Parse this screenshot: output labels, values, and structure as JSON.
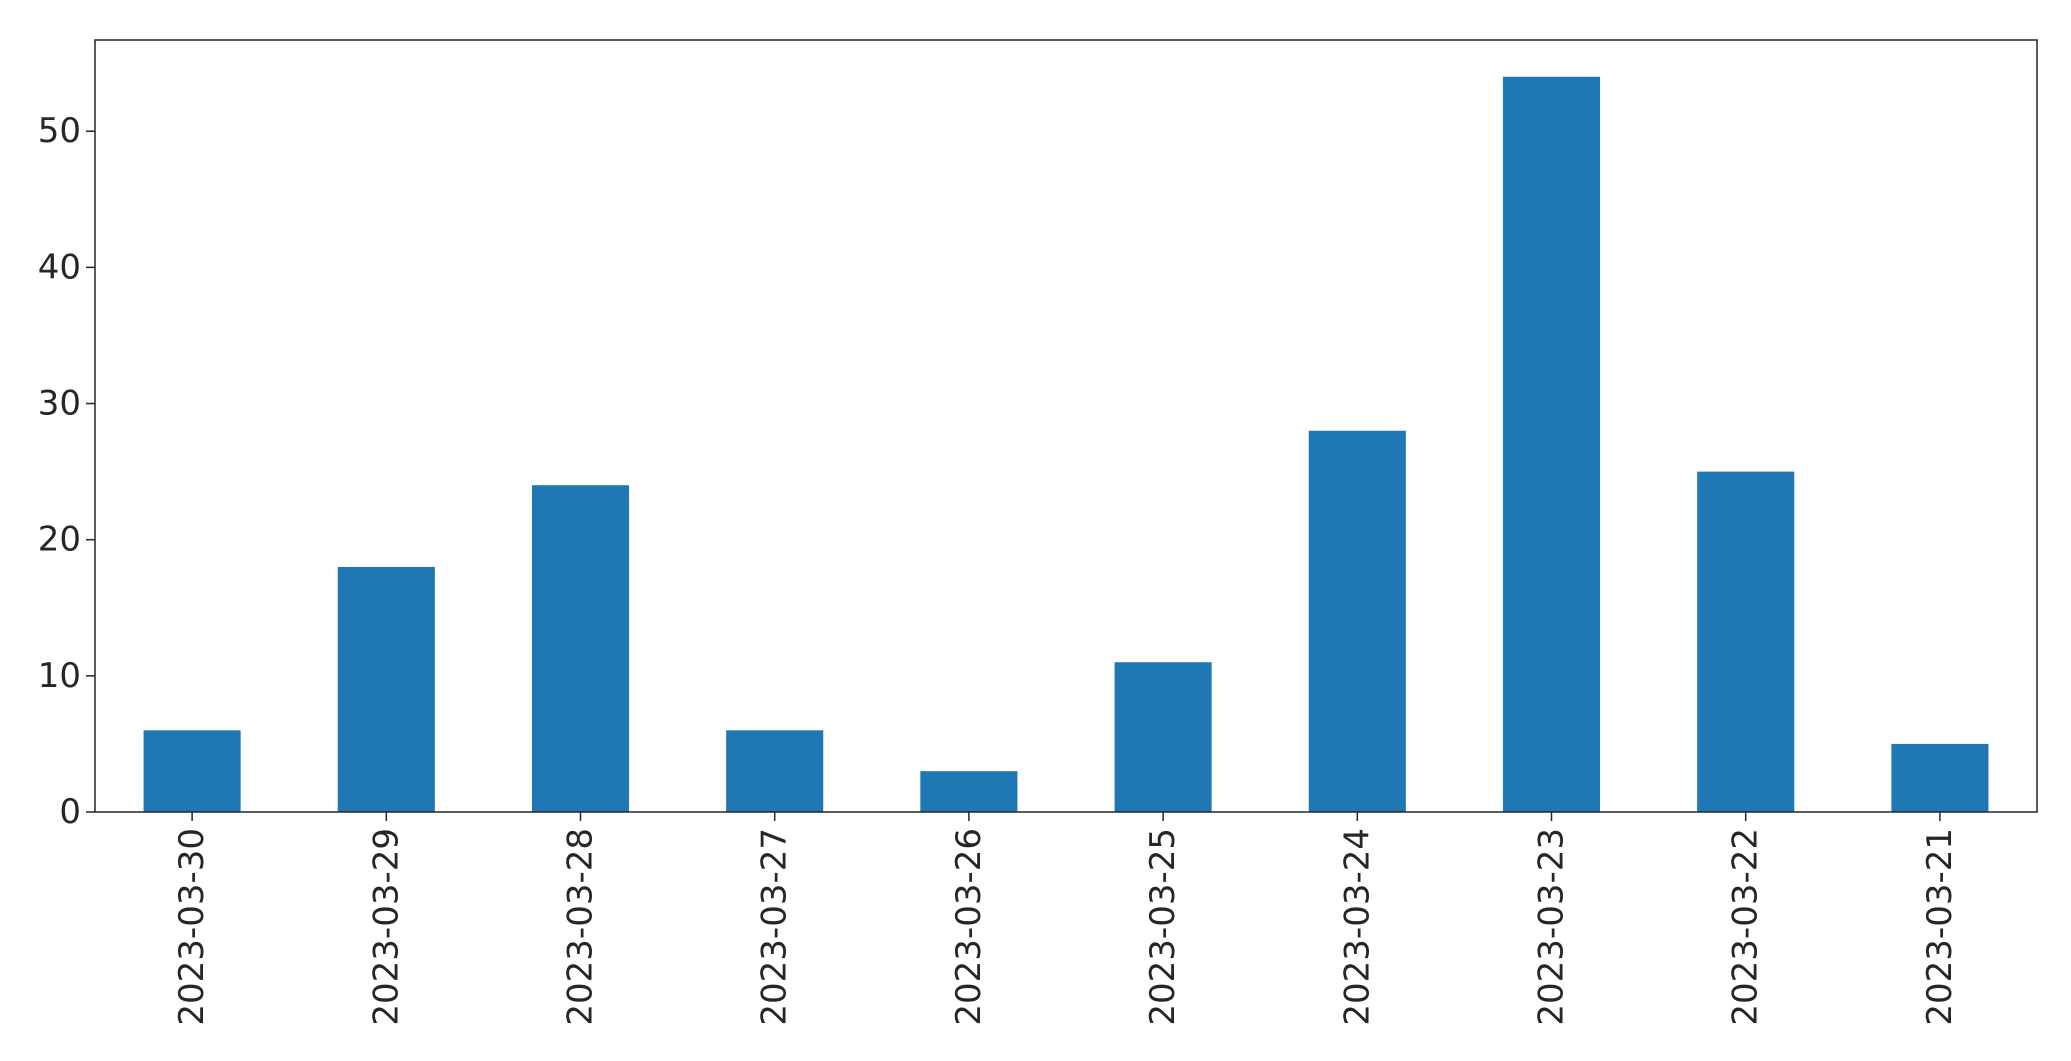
{
  "chart_data": {
    "type": "bar",
    "title": "",
    "xlabel": "",
    "ylabel": "",
    "categories": [
      "2023-03-30",
      "2023-03-29",
      "2023-03-28",
      "2023-03-27",
      "2023-03-26",
      "2023-03-25",
      "2023-03-24",
      "2023-03-23",
      "2023-03-22",
      "2023-03-21"
    ],
    "values": [
      6,
      18,
      24,
      6,
      3,
      11,
      28,
      54,
      25,
      5
    ],
    "ylim": [
      0,
      56.7
    ],
    "yticks": [
      0,
      10,
      20,
      30,
      40,
      50
    ],
    "grid": false,
    "legend": "none",
    "bar_color": "#1f77b4"
  }
}
